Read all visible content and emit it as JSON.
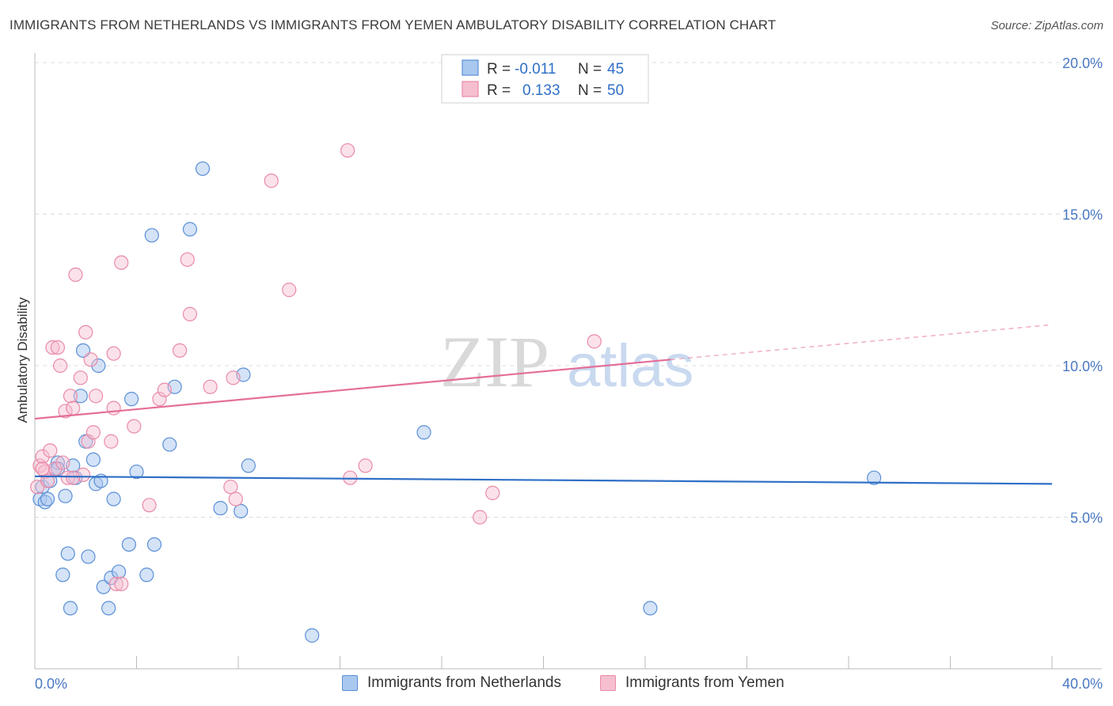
{
  "title": "IMMIGRANTS FROM NETHERLANDS VS IMMIGRANTS FROM YEMEN AMBULATORY DISABILITY CORRELATION CHART",
  "source": "Source: ZipAtlas.com",
  "watermark": {
    "part1": "ZIP",
    "part2": "atlas"
  },
  "legend": {
    "rows": [
      {
        "r_label": "R =",
        "r_value": "-0.011",
        "n_label": "N =",
        "n_value": "45"
      },
      {
        "r_label": "R =",
        "r_value": "0.133",
        "n_label": "N =",
        "n_value": "50"
      }
    ]
  },
  "bottom_legend": {
    "items": [
      {
        "label": "Immigrants from Netherlands"
      },
      {
        "label": "Immigrants from Yemen"
      }
    ]
  },
  "colors": {
    "blue_fill": "#a9c8ef",
    "blue_stroke": "#5b8fd6",
    "blue_line": "#2f6fc6",
    "pink_fill": "#f6bfd0",
    "pink_stroke": "#e98aa8",
    "pink_line": "#e46f99",
    "grid": "#dcdcdc",
    "tick_text": "#4a78c2"
  },
  "chart_data": {
    "type": "scatter",
    "title": "IMMIGRANTS FROM NETHERLANDS VS IMMIGRANTS FROM YEMEN AMBULATORY DISABILITY CORRELATION CHART",
    "ylabel": "Ambulatory Disability",
    "xlabel": "",
    "xlim": [
      0,
      40
    ],
    "ylim": [
      0,
      20
    ],
    "x_tick_labels": [
      "0.0%",
      "40.0%"
    ],
    "y_ticks": [
      5,
      10,
      15,
      20
    ],
    "y_tick_labels": [
      "5.0%",
      "10.0%",
      "15.0%",
      "20.0%"
    ],
    "grid": true,
    "legend_position": "top-center",
    "series": [
      {
        "name": "Immigrants from Netherlands",
        "r": -0.011,
        "n": 45,
        "trend": {
          "x0": 0,
          "y0": 6.35,
          "x1": 40,
          "y1": 6.1
        },
        "points": [
          [
            0.3,
            6.0
          ],
          [
            0.2,
            5.6
          ],
          [
            0.4,
            5.5
          ],
          [
            0.5,
            5.6
          ],
          [
            0.6,
            6.2
          ],
          [
            0.8,
            6.6
          ],
          [
            0.9,
            6.8
          ],
          [
            1.2,
            5.7
          ],
          [
            1.5,
            6.7
          ],
          [
            1.6,
            6.3
          ],
          [
            1.8,
            9.0
          ],
          [
            1.9,
            10.5
          ],
          [
            2.0,
            7.5
          ],
          [
            2.3,
            6.9
          ],
          [
            2.5,
            10.0
          ],
          [
            2.4,
            6.1
          ],
          [
            2.6,
            6.2
          ],
          [
            3.1,
            5.6
          ],
          [
            3.8,
            8.9
          ],
          [
            4.0,
            6.5
          ],
          [
            4.6,
            14.3
          ],
          [
            5.3,
            7.4
          ],
          [
            5.5,
            9.3
          ],
          [
            6.1,
            14.5
          ],
          [
            6.6,
            16.5
          ],
          [
            7.3,
            5.3
          ],
          [
            8.1,
            5.2
          ],
          [
            8.2,
            9.7
          ],
          [
            8.4,
            6.7
          ],
          [
            1.3,
            3.8
          ],
          [
            2.1,
            3.7
          ],
          [
            1.1,
            3.1
          ],
          [
            1.4,
            2.0
          ],
          [
            2.7,
            2.7
          ],
          [
            3.0,
            3.0
          ],
          [
            3.3,
            3.2
          ],
          [
            2.9,
            2.0
          ],
          [
            3.7,
            4.1
          ],
          [
            4.4,
            3.1
          ],
          [
            4.7,
            4.1
          ],
          [
            10.9,
            1.1
          ],
          [
            15.3,
            7.8
          ],
          [
            24.2,
            2.0
          ],
          [
            33.0,
            6.3
          ],
          [
            0.9,
            6.6
          ]
        ]
      },
      {
        "name": "Immigrants from Yemen",
        "r": 0.133,
        "n": 50,
        "trend": {
          "x0": 0,
          "y0": 8.25,
          "x1": 25,
          "y1": 10.2,
          "x_dash_end": 40,
          "y_dash_end": 11.35
        },
        "points": [
          [
            0.1,
            6.0
          ],
          [
            0.2,
            6.7
          ],
          [
            0.3,
            7.0
          ],
          [
            0.4,
            6.5
          ],
          [
            0.5,
            6.2
          ],
          [
            0.6,
            7.2
          ],
          [
            0.7,
            10.6
          ],
          [
            0.8,
            6.6
          ],
          [
            0.9,
            10.6
          ],
          [
            1.0,
            10.0
          ],
          [
            1.1,
            6.8
          ],
          [
            1.2,
            8.5
          ],
          [
            1.3,
            6.3
          ],
          [
            1.4,
            9.0
          ],
          [
            1.5,
            8.6
          ],
          [
            1.6,
            13.0
          ],
          [
            1.8,
            9.6
          ],
          [
            1.9,
            6.4
          ],
          [
            2.0,
            11.1
          ],
          [
            2.1,
            7.5
          ],
          [
            2.2,
            10.2
          ],
          [
            2.3,
            7.8
          ],
          [
            2.4,
            9.0
          ],
          [
            3.0,
            7.5
          ],
          [
            3.1,
            10.4
          ],
          [
            3.1,
            8.6
          ],
          [
            3.4,
            13.4
          ],
          [
            3.9,
            8.0
          ],
          [
            4.5,
            5.4
          ],
          [
            4.9,
            8.9
          ],
          [
            5.1,
            9.2
          ],
          [
            5.7,
            10.5
          ],
          [
            6.0,
            13.5
          ],
          [
            6.1,
            11.7
          ],
          [
            6.9,
            9.3
          ],
          [
            7.7,
            6.0
          ],
          [
            7.8,
            9.6
          ],
          [
            7.9,
            5.6
          ],
          [
            9.3,
            16.1
          ],
          [
            10.0,
            12.5
          ],
          [
            12.3,
            17.1
          ],
          [
            12.4,
            6.3
          ],
          [
            13.0,
            6.7
          ],
          [
            17.5,
            5.0
          ],
          [
            18.0,
            5.8
          ],
          [
            22.0,
            10.8
          ],
          [
            3.2,
            2.8
          ],
          [
            3.4,
            2.8
          ],
          [
            0.3,
            6.6
          ],
          [
            1.5,
            6.3
          ]
        ]
      }
    ]
  }
}
